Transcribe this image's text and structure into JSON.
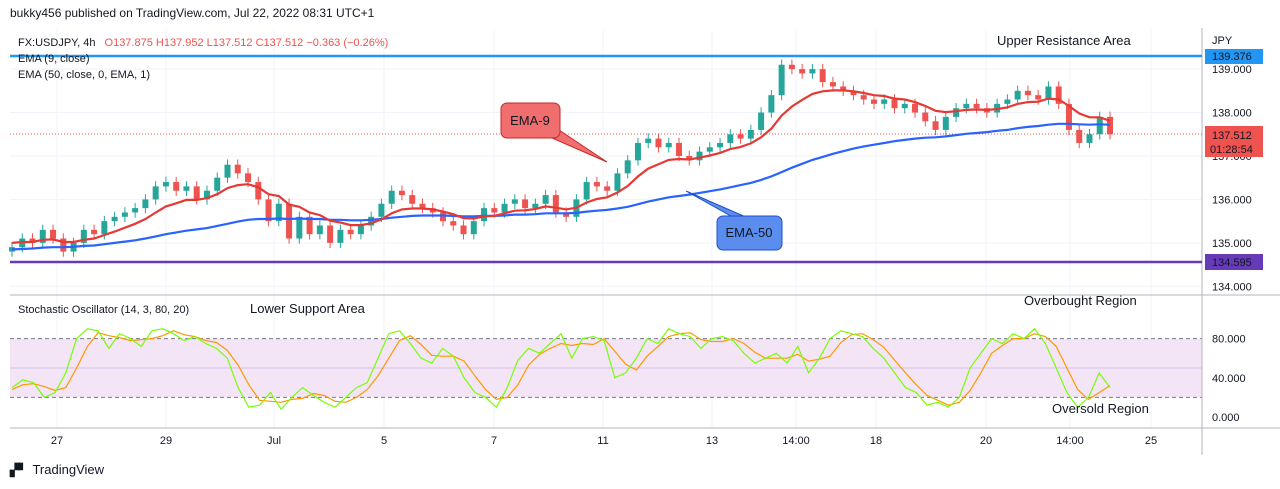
{
  "header": {
    "publish_line": "bukky456 published on TradingView.com, Jul 22, 2022 08:31 UTC+1"
  },
  "footer": {
    "brand": "TradingView",
    "logo_icon": "tradingview-logo-icon"
  },
  "legend": {
    "symbol": "FX:USDJPY, 4h",
    "ohlc": "O137.875  H137.952  L137.512  C137.512  −0.363  (−0.26%)",
    "ema9": "EMA (9, close)",
    "ema50": "EMA (50, close, 0, EMA, 1)",
    "stoch": "Stochastic Oscillator (14, 3, 80, 20)"
  },
  "colors": {
    "up": "#26a69a",
    "down": "#ef5350",
    "ema9": "#e53935",
    "ema50": "#2962ff",
    "resistance": "#2196f3",
    "support": "#673ab7",
    "stoch_k": "#76ff03",
    "stoch_d": "#ff9800",
    "stoch_band": "#f3e5f5"
  },
  "chart_data": {
    "type": "candlestick",
    "price_axis": {
      "unit": "JPY",
      "ylim": [
        133.8,
        139.9
      ],
      "ticks": [
        "139.000",
        "138.000",
        "137.000",
        "136.000",
        "135.000",
        "134.000"
      ]
    },
    "x_ticks": [
      "27",
      "29",
      "Jul",
      "5",
      "7",
      "11",
      "13",
      "14:00",
      "18",
      "20",
      "14:00",
      "25"
    ],
    "levels": {
      "resistance_label": "139.376",
      "support_label": "134.595",
      "resistance": 139.376,
      "support": 134.595
    },
    "last_price": {
      "value": "137.512",
      "countdown": "01:28:54",
      "price": 137.512
    },
    "closes": [
      134.9,
      135.1,
      135.0,
      135.3,
      135.1,
      134.8,
      135.0,
      135.3,
      135.2,
      135.5,
      135.6,
      135.7,
      135.8,
      136.0,
      136.3,
      136.4,
      136.2,
      136.3,
      136.0,
      136.2,
      136.5,
      136.8,
      136.6,
      136.4,
      136.0,
      135.5,
      135.9,
      135.1,
      135.6,
      135.2,
      135.4,
      135.0,
      135.3,
      135.2,
      135.4,
      135.6,
      135.9,
      136.2,
      136.1,
      135.9,
      135.8,
      135.7,
      135.5,
      135.4,
      135.2,
      135.5,
      135.8,
      135.7,
      135.9,
      136.0,
      135.8,
      135.9,
      136.1,
      135.7,
      135.6,
      136.0,
      136.4,
      136.3,
      136.2,
      136.6,
      136.9,
      137.3,
      137.4,
      137.2,
      137.3,
      137.0,
      136.9,
      137.1,
      137.2,
      137.3,
      137.5,
      137.4,
      137.6,
      138.0,
      138.4,
      139.1,
      139.0,
      138.9,
      139.0,
      138.7,
      138.6,
      138.5,
      138.4,
      138.3,
      138.2,
      138.3,
      138.1,
      138.2,
      138.0,
      137.8,
      137.6,
      137.9,
      138.1,
      138.2,
      138.1,
      138.0,
      138.2,
      138.3,
      138.5,
      138.4,
      138.3,
      138.6,
      138.2,
      137.6,
      137.3,
      137.5,
      137.9,
      137.5
    ],
    "ema9": [
      135.0,
      135.02,
      135.02,
      135.07,
      135.08,
      135.02,
      135.02,
      135.07,
      135.1,
      135.18,
      135.26,
      135.35,
      135.44,
      135.55,
      135.7,
      135.84,
      135.91,
      135.99,
      135.99,
      136.03,
      136.12,
      136.26,
      136.33,
      136.35,
      136.28,
      136.12,
      136.08,
      135.88,
      135.83,
      135.7,
      135.64,
      135.51,
      135.47,
      135.41,
      135.41,
      135.45,
      135.54,
      135.68,
      135.77,
      135.79,
      135.79,
      135.77,
      135.72,
      135.66,
      135.57,
      135.56,
      135.61,
      135.62,
      135.68,
      135.74,
      135.75,
      135.78,
      135.84,
      135.81,
      135.77,
      135.81,
      135.93,
      136.01,
      136.05,
      136.16,
      136.31,
      136.53,
      136.71,
      136.81,
      136.91,
      136.93,
      136.92,
      136.96,
      137.01,
      137.07,
      137.16,
      137.21,
      137.29,
      137.43,
      137.63,
      137.93,
      138.14,
      138.29,
      138.43,
      138.49,
      138.51,
      138.51,
      138.49,
      138.45,
      138.4,
      138.38,
      138.32,
      138.3,
      138.24,
      138.15,
      138.04,
      138.01,
      138.03,
      138.06,
      138.07,
      138.06,
      138.08,
      138.12,
      138.2,
      138.24,
      138.25,
      138.32,
      138.3,
      138.15,
      137.98,
      137.89,
      137.89,
      137.81
    ],
    "ema50": [
      134.85,
      134.86,
      134.87,
      134.89,
      134.9,
      134.9,
      134.91,
      134.93,
      134.94,
      134.97,
      135.0,
      135.03,
      135.06,
      135.1,
      135.15,
      135.2,
      135.24,
      135.28,
      135.31,
      135.34,
      135.39,
      135.44,
      135.49,
      135.53,
      135.55,
      135.55,
      135.56,
      135.55,
      135.56,
      135.55,
      135.55,
      135.53,
      135.53,
      135.52,
      135.52,
      135.53,
      135.55,
      135.58,
      135.6,
      135.62,
      135.63,
      135.63,
      135.63,
      135.62,
      135.61,
      135.61,
      135.62,
      135.62,
      135.63,
      135.65,
      135.65,
      135.66,
      135.68,
      135.68,
      135.68,
      135.69,
      135.72,
      135.74,
      135.76,
      135.79,
      135.83,
      135.89,
      135.95,
      136.0,
      136.05,
      136.08,
      136.11,
      136.15,
      136.19,
      136.23,
      136.28,
      136.33,
      136.38,
      136.45,
      136.53,
      136.63,
      136.73,
      136.82,
      136.91,
      136.98,
      137.05,
      137.11,
      137.17,
      137.22,
      137.26,
      137.3,
      137.34,
      137.37,
      137.4,
      137.42,
      137.43,
      137.45,
      137.48,
      137.51,
      137.53,
      137.55,
      137.58,
      137.6,
      137.64,
      137.67,
      137.69,
      137.72,
      137.74,
      137.74,
      137.73,
      137.72,
      137.73,
      137.72
    ],
    "stoch_k": [
      30,
      38,
      35,
      20,
      25,
      45,
      80,
      90,
      88,
      70,
      85,
      80,
      72,
      88,
      90,
      85,
      78,
      82,
      75,
      70,
      60,
      30,
      10,
      12,
      25,
      8,
      20,
      30,
      22,
      15,
      10,
      20,
      30,
      35,
      60,
      85,
      88,
      75,
      60,
      55,
      70,
      62,
      40,
      25,
      20,
      10,
      30,
      58,
      70,
      65,
      75,
      85,
      60,
      80,
      82,
      78,
      40,
      45,
      60,
      80,
      75,
      90,
      85,
      82,
      70,
      80,
      82,
      78,
      65,
      55,
      60,
      65,
      55,
      72,
      45,
      60,
      80,
      88,
      85,
      82,
      70,
      60,
      45,
      30,
      25,
      12,
      15,
      10,
      20,
      50,
      65,
      80,
      75,
      85,
      80,
      90,
      75,
      50,
      25,
      10,
      20,
      45,
      30
    ],
    "stoch_d": [
      28,
      33,
      34,
      31,
      27,
      30,
      50,
      72,
      86,
      83,
      81,
      78,
      79,
      80,
      83,
      88,
      84,
      82,
      78,
      76,
      68,
      53,
      33,
      17,
      16,
      15,
      18,
      19,
      24,
      22,
      16,
      15,
      20,
      28,
      42,
      60,
      78,
      83,
      74,
      63,
      62,
      62,
      57,
      42,
      28,
      18,
      20,
      33,
      53,
      64,
      70,
      75,
      73,
      75,
      74,
      80,
      67,
      54,
      48,
      62,
      72,
      82,
      85,
      86,
      79,
      77,
      77,
      80,
      75,
      66,
      60,
      60,
      60,
      64,
      57,
      59,
      62,
      76,
      84,
      85,
      79,
      71,
      58,
      45,
      33,
      22,
      17,
      12,
      15,
      27,
      45,
      65,
      73,
      80,
      80,
      85,
      82,
      72,
      50,
      28,
      18,
      25,
      32
    ]
  }
}
